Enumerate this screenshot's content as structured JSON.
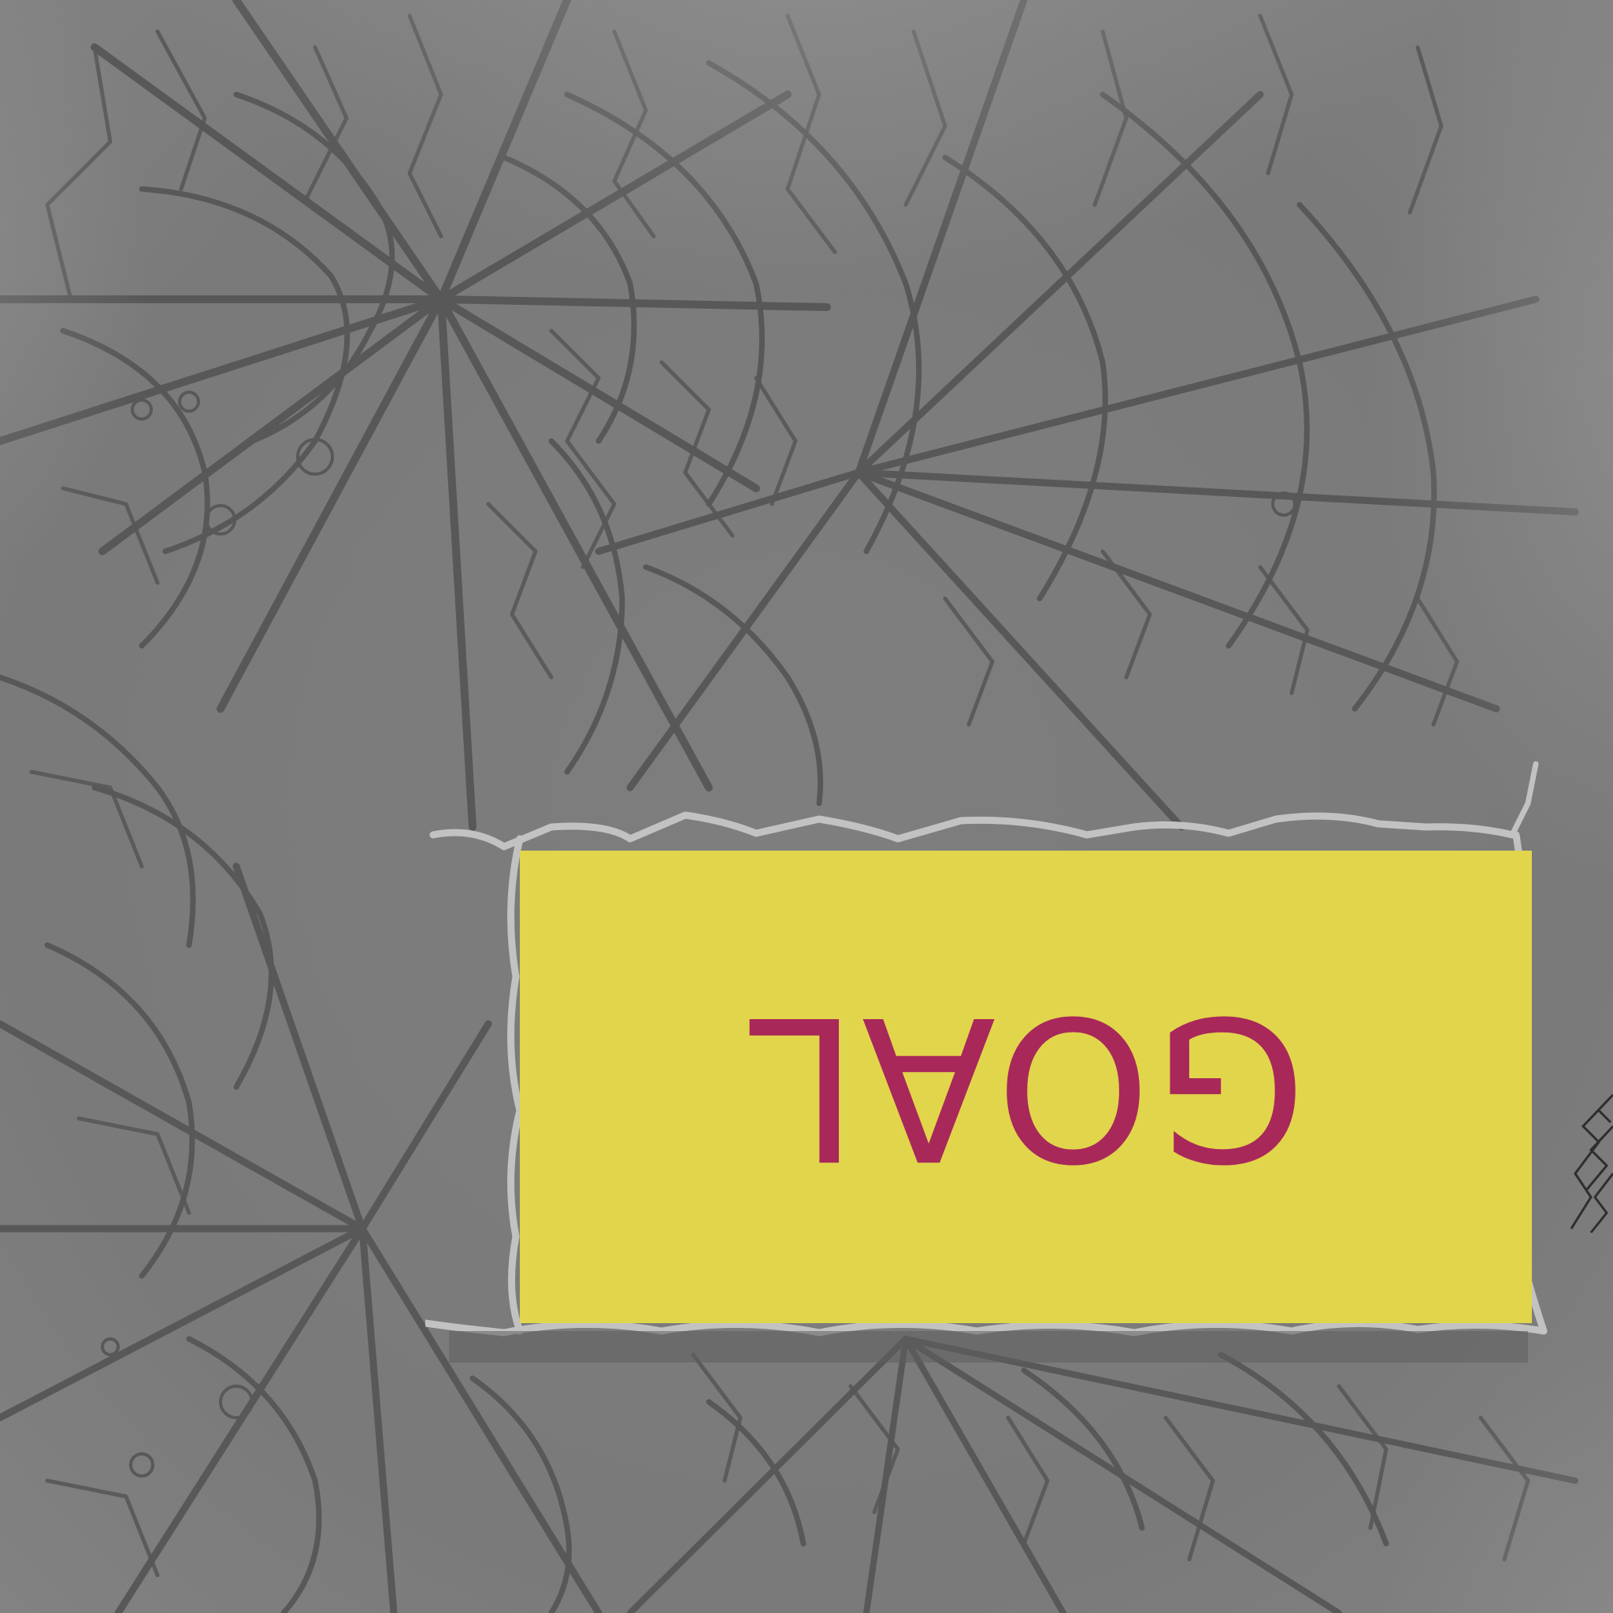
{
  "scene": {
    "name": "shattered-glass-goal-screen",
    "background_color": "#7b7b7b",
    "crack_color": "#5a5a5a"
  },
  "banner": {
    "text": "GOAL",
    "fill_color": "#e1d54c",
    "text_color": "#a8285a",
    "border_color": "#c4c4c4",
    "orientation": "upside-down"
  }
}
